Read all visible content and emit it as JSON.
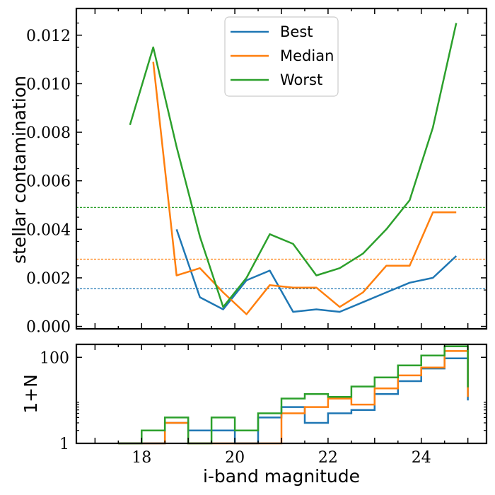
{
  "chart_data": [
    {
      "type": "line",
      "title": "",
      "xlabel": "",
      "ylabel": "stellar contamination",
      "xlim": [
        16.6,
        25.4
      ],
      "ylim": [
        -0.0001,
        0.0131
      ],
      "yticks": [
        0.0,
        0.002,
        0.004,
        0.006,
        0.008,
        0.01,
        0.012
      ],
      "ytick_labels": [
        "0.000",
        "0.002",
        "0.004",
        "0.006",
        "0.008",
        "0.010",
        "0.012"
      ],
      "legend_position": "top-center",
      "series": [
        {
          "name": "Best",
          "color": "#1f77b4",
          "x": [
            18.75,
            19.25,
            19.75,
            20.25,
            20.75,
            21.25,
            21.75,
            22.25,
            22.75,
            23.25,
            23.75,
            24.25,
            24.75
          ],
          "y": [
            0.004,
            0.0012,
            0.0007,
            0.0019,
            0.0023,
            0.0006,
            0.0007,
            0.0006,
            0.001,
            0.0014,
            0.0018,
            0.002,
            0.0029
          ]
        },
        {
          "name": "Median",
          "color": "#ff7f0e",
          "x": [
            18.25,
            18.75,
            19.25,
            19.75,
            20.25,
            20.75,
            21.25,
            21.75,
            22.25,
            22.75,
            23.25,
            23.75,
            24.25,
            24.75
          ],
          "y": [
            0.0109,
            0.0021,
            0.0024,
            0.0014,
            0.0005,
            0.0017,
            0.0016,
            0.0016,
            0.0008,
            0.0014,
            0.0025,
            0.0025,
            0.0047,
            0.0047
          ]
        },
        {
          "name": "Worst",
          "color": "#2ca02c",
          "x": [
            17.75,
            18.25,
            18.75,
            19.25,
            19.75,
            20.25,
            20.75,
            21.25,
            21.75,
            22.25,
            22.75,
            23.25,
            23.75,
            24.25,
            24.75
          ],
          "y": [
            0.0083,
            0.0115,
            0.0074,
            0.0037,
            0.0008,
            0.002,
            0.0038,
            0.0034,
            0.0021,
            0.0024,
            0.003,
            0.004,
            0.0052,
            0.0082,
            0.0125
          ]
        }
      ],
      "hlines": [
        {
          "y": 0.00155,
          "color": "#1f77b4",
          "style": "dotted"
        },
        {
          "y": 0.00277,
          "color": "#ff7f0e",
          "style": "dotted"
        },
        {
          "y": 0.0049,
          "color": "#2ca02c",
          "style": "dotted"
        }
      ]
    },
    {
      "type": "step",
      "title": "",
      "xlabel": "i-band magnitude",
      "ylabel": "1+N",
      "yscale": "log",
      "xlim": [
        16.6,
        25.4
      ],
      "ylim": [
        1,
        200
      ],
      "xticks": [
        18,
        20,
        22,
        24
      ],
      "xtick_labels": [
        "18",
        "20",
        "22",
        "24"
      ],
      "yticks": [
        1,
        100
      ],
      "ytick_labels": [
        "1",
        "100"
      ],
      "bin_edges": [
        17.5,
        18.0,
        18.5,
        19.0,
        19.5,
        20.0,
        20.5,
        21.0,
        21.5,
        22.0,
        22.5,
        23.0,
        23.5,
        24.0,
        24.5,
        25.0
      ],
      "series": [
        {
          "name": "Best",
          "color": "#1f77b4",
          "counts": [
            1,
            1,
            3,
            2,
            2,
            1,
            4,
            7,
            3,
            5,
            6,
            14,
            28,
            55,
            95,
            10
          ]
        },
        {
          "name": "Median",
          "color": "#ff7f0e",
          "counts": [
            1,
            1,
            3,
            1,
            1,
            1,
            1,
            5,
            7,
            11,
            8,
            19,
            38,
            58,
            140,
            12
          ]
        },
        {
          "name": "Worst",
          "color": "#2ca02c",
          "counts": [
            1,
            2,
            4,
            1,
            4,
            2,
            5,
            11,
            14,
            12,
            21,
            34,
            65,
            110,
            180,
            20
          ]
        }
      ]
    }
  ]
}
